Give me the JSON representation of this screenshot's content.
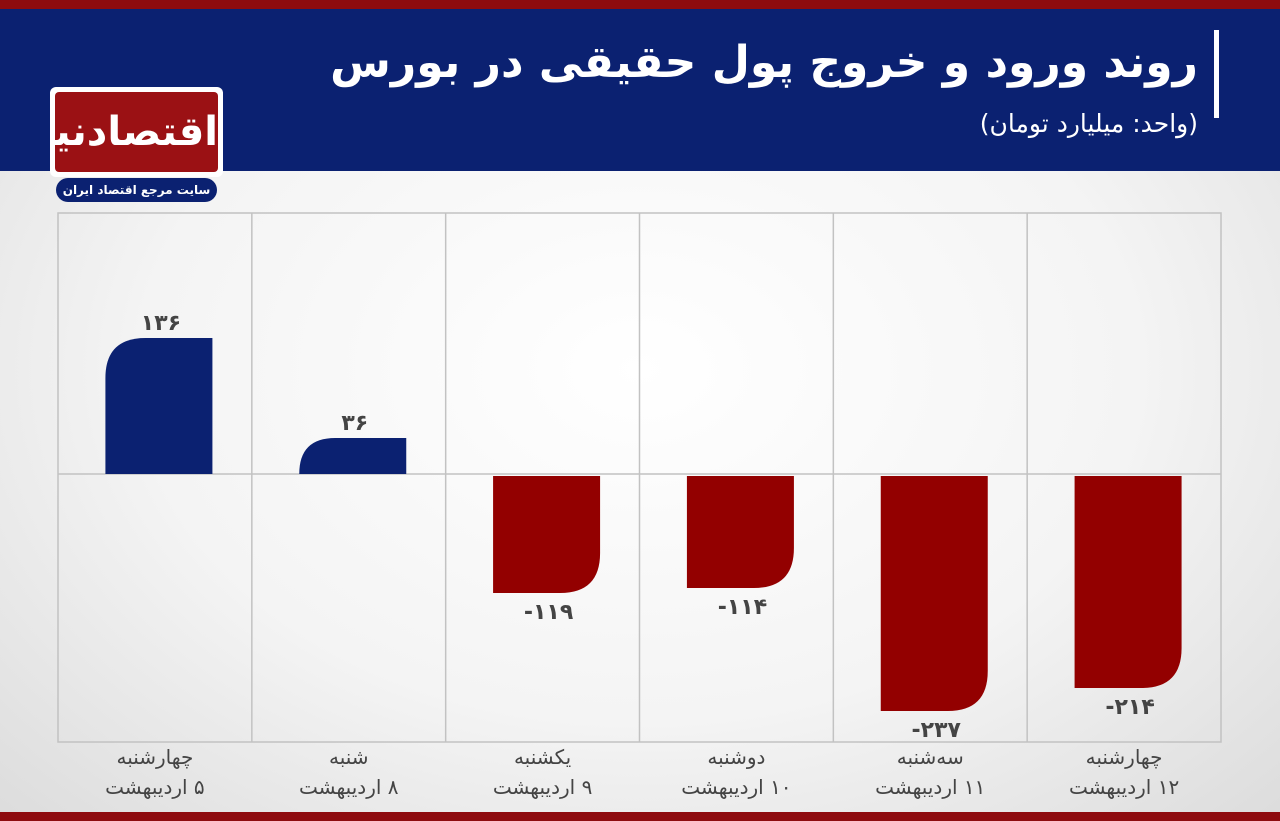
{
  "header": {
    "title": "روند ورود و خروج پول حقیقی در بورس",
    "subtitle": "(واحد: میلیارد تومان)"
  },
  "logo": {
    "name": "اقتصادنیوز",
    "tagline": "سایت مرجع اقتصاد ایران"
  },
  "colors": {
    "header_bg": "#0b2171",
    "accent_red": "#8e0b0f",
    "positive_bar": "#0b2171",
    "negative_bar": "#930000",
    "grid": "#c2c2c2",
    "label_text": "#444444"
  },
  "chart_data": {
    "type": "bar",
    "categories": [
      [
        "چهارشنبه",
        "۵ اردیبهشت"
      ],
      [
        "شنبه",
        "۸ اردیبهشت"
      ],
      [
        "یکشنبه",
        "۹ اردیبهشت"
      ],
      [
        "دوشنبه",
        "۱۰ اردیبهشت"
      ],
      [
        "سه‌شنبه",
        "۱۱ اردیبهشت"
      ],
      [
        "چهارشنبه",
        "۱۲ اردیبهشت"
      ]
    ],
    "values": [
      136,
      36,
      -119,
      -114,
      -237,
      -214
    ],
    "value_labels": [
      "۱۳۶",
      "۳۶",
      "-۱۱۹",
      "-۱۱۴",
      "-۲۳۷",
      "-۲۱۴"
    ],
    "ylim": [
      -260,
      260
    ],
    "grid": true,
    "legend": "none"
  }
}
